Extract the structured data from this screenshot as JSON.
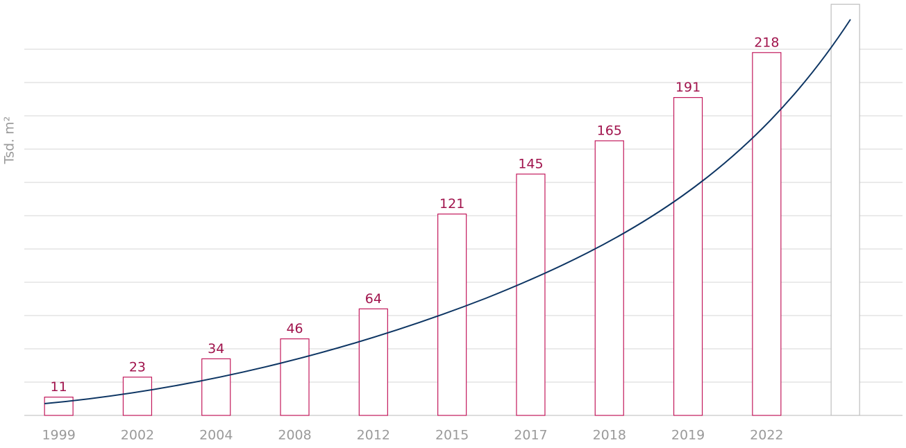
{
  "chart_data": {
    "type": "bar",
    "y_axis_label": "Tsd. m²",
    "categories": [
      "1999",
      "2002",
      "2004",
      "2008",
      "2012",
      "2015",
      "2017",
      "2018",
      "2019",
      "2022",
      null
    ],
    "values": [
      11,
      23,
      34,
      46,
      64,
      121,
      145,
      165,
      191,
      218,
      247
    ],
    "value_labels": [
      "11",
      "23",
      "34",
      "46",
      "64",
      "121",
      "145",
      "165",
      "191",
      "218",
      null
    ],
    "colors": [
      "#c2185b",
      "#c2185b",
      "#c2185b",
      "#c2185b",
      "#c2185b",
      "#c2185b",
      "#c2185b",
      "#c2185b",
      "#c2185b",
      "#c2185b",
      "#bdbdbd"
    ],
    "ylim": [
      0,
      250
    ],
    "yticks": [
      0,
      20,
      40,
      60,
      80,
      100,
      120,
      140,
      160,
      180,
      200,
      220
    ],
    "grid": true
  }
}
